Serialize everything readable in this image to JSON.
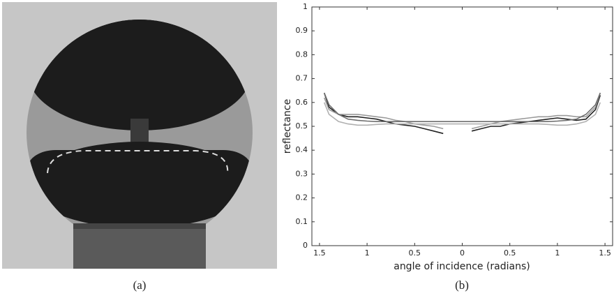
{
  "captions": [
    "(a)",
    "(b)"
  ],
  "chart_data": {
    "type": "line",
    "xlabel": "angle of incidence (radians)",
    "ylabel": "reflectance",
    "x": [
      -1.45,
      -1.4,
      -1.3,
      -1.2,
      -1.1,
      -1.0,
      -0.9,
      -0.8,
      -0.7,
      -0.6,
      -0.5,
      -0.4,
      -0.3,
      -0.2,
      -0.1,
      0,
      0.1,
      0.2,
      0.3,
      0.4,
      0.5,
      0.6,
      0.7,
      0.8,
      0.9,
      1.0,
      1.1,
      1.2,
      1.3,
      1.4,
      1.45
    ],
    "series": [
      {
        "color": "#222222",
        "values": [
          0.64,
          0.58,
          0.55,
          0.54,
          0.54,
          0.535,
          0.53,
          0.52,
          0.51,
          0.505,
          0.5,
          0.49,
          0.48,
          0.47,
          null,
          null,
          0.48,
          0.49,
          0.5,
          0.5,
          0.51,
          0.515,
          0.52,
          0.525,
          0.53,
          0.535,
          0.53,
          0.525,
          0.53,
          0.57,
          0.63
        ]
      },
      {
        "color": "#9a9a9a",
        "values": [
          0.62,
          0.57,
          0.55,
          0.55,
          0.55,
          0.545,
          0.54,
          0.535,
          0.525,
          0.52,
          0.51,
          0.505,
          0.5,
          0.49,
          null,
          null,
          0.49,
          0.5,
          0.51,
          0.52,
          0.525,
          0.53,
          0.535,
          0.54,
          0.54,
          0.545,
          0.545,
          0.54,
          0.54,
          0.58,
          0.64
        ]
      },
      {
        "color": "#6e6e6e",
        "values": [
          0.64,
          0.59,
          0.55,
          0.53,
          0.525,
          0.522,
          0.52,
          0.52,
          0.52,
          0.52,
          0.52,
          0.52,
          0.52,
          0.52,
          0.52,
          0.52,
          0.52,
          0.52,
          0.52,
          0.52,
          0.52,
          0.52,
          0.52,
          0.52,
          0.52,
          0.522,
          0.525,
          0.53,
          0.55,
          0.59,
          0.64
        ]
      },
      {
        "color": "#b0b0b0",
        "values": [
          0.6,
          0.55,
          0.52,
          0.51,
          0.505,
          0.505,
          0.508,
          0.51,
          0.51,
          0.51,
          0.51,
          0.51,
          0.51,
          0.51,
          0.51,
          0.51,
          0.51,
          0.51,
          0.51,
          0.51,
          0.51,
          0.51,
          0.51,
          0.51,
          0.508,
          0.505,
          0.505,
          0.51,
          0.52,
          0.55,
          0.6
        ]
      }
    ],
    "xlim": [
      -1.58,
      1.58
    ],
    "xticks": [
      {
        "value": -1.5,
        "label": "1.5"
      },
      {
        "value": -1,
        "label": "1"
      },
      {
        "value": -0.5,
        "label": "0.5"
      },
      0,
      0.5,
      1,
      1.5
    ],
    "ylim": [
      0,
      1
    ],
    "yticks": [
      0,
      0.1,
      0.2,
      0.3,
      0.4,
      0.5,
      0.6,
      0.7,
      0.8,
      0.9,
      1
    ]
  }
}
